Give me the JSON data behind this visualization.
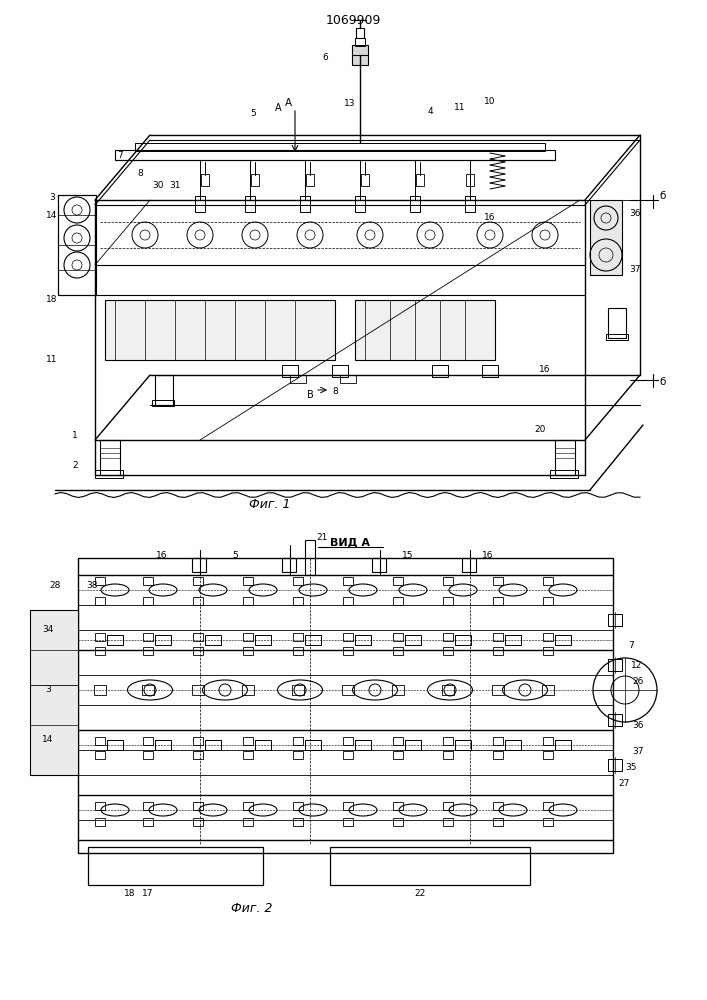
{
  "title": "1069909",
  "fig1_caption": "Фиг. 1",
  "fig2_caption": "Фиг. 2",
  "vid_label": "ВИД А",
  "bg_color": "#ffffff",
  "line_color": "#000000",
  "fig_width": 7.07,
  "fig_height": 10.0,
  "dpi": 100
}
